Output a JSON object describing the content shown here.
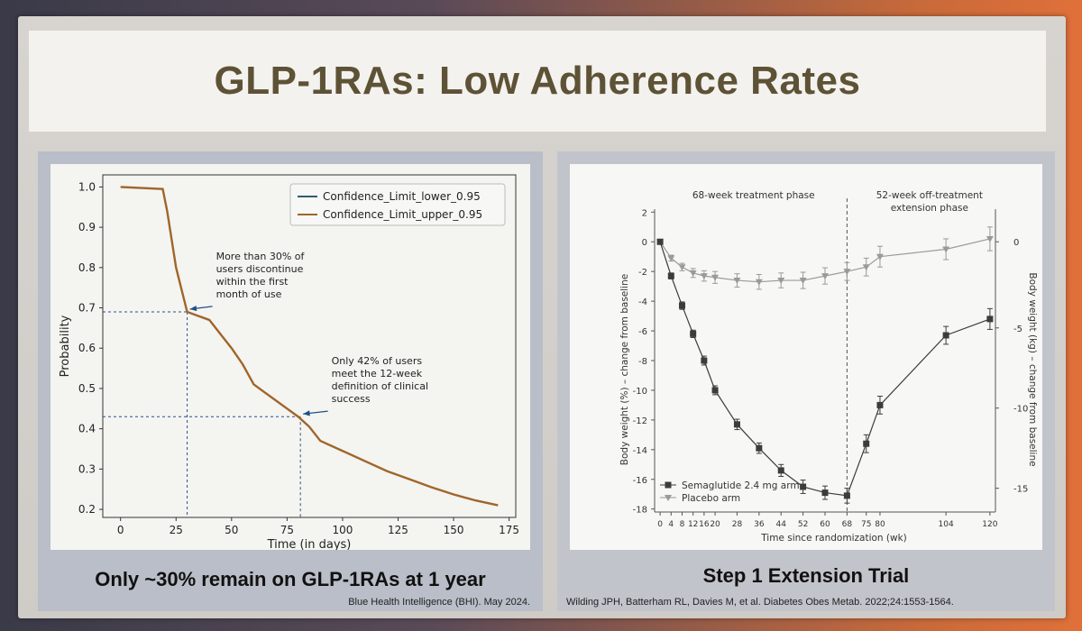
{
  "slide": {
    "title": "GLP-1RAs: Low Adherence Rates"
  },
  "left_panel": {
    "caption": "Only ~30% remain on GLP-1RAs at 1 year",
    "source": "Blue Health Intelligence (BHI). May 2024."
  },
  "right_panel": {
    "caption": "Step 1 Extension Trial",
    "source": "Wilding JPH, Batterham RL, Davies M, et al.  Diabetes Obes Metab.  2022;24:1553-1564."
  },
  "colors": {
    "title": "#5e5236",
    "curve": "#a0652a",
    "lower_line": "#2f5d6e",
    "sema": "#3c3c3c",
    "placebo": "#9a9a9a"
  },
  "chart_data": [
    {
      "type": "line",
      "title": "",
      "xlabel": "Time (in days)",
      "ylabel": "Probability",
      "xlim": [
        -8,
        178
      ],
      "ylim": [
        0.18,
        1.03
      ],
      "xticks": [
        0,
        25,
        50,
        75,
        100,
        125,
        150,
        175
      ],
      "xtick_labels": [
        "0",
        "25",
        "50",
        "75",
        "100",
        "125",
        "150",
        "175"
      ],
      "yticks": [
        0.2,
        0.3,
        0.4,
        0.5,
        0.6,
        0.7,
        0.8,
        0.9,
        1.0
      ],
      "ytick_labels": [
        "0.2",
        "0.3",
        "0.4",
        "0.5",
        "0.6",
        "0.7",
        "0.8",
        "0.9",
        "1.0"
      ],
      "legend": {
        "position": "top-right",
        "entries": [
          "Confidence_Limit_lower_0.95",
          "Confidence_Limit_upper_0.95"
        ]
      },
      "series": [
        {
          "name": "Confidence_Limit_upper_0.95",
          "x": [
            0,
            19,
            21,
            25,
            30,
            35,
            40,
            45,
            50,
            55,
            60,
            65,
            70,
            75,
            80,
            85,
            90,
            100,
            110,
            120,
            130,
            140,
            150,
            160,
            170
          ],
          "y": [
            1.0,
            0.995,
            0.94,
            0.8,
            0.69,
            0.68,
            0.67,
            0.635,
            0.6,
            0.56,
            0.51,
            0.49,
            0.47,
            0.45,
            0.43,
            0.405,
            0.37,
            0.345,
            0.32,
            0.295,
            0.275,
            0.255,
            0.237,
            0.222,
            0.21
          ]
        }
      ],
      "reference_lines": [
        {
          "x": 30,
          "y": 0.69
        },
        {
          "x": 81,
          "y": 0.43
        }
      ],
      "annotations": [
        {
          "text": [
            "More than 30% of",
            "users discontinue",
            "within the first",
            "month of use"
          ],
          "arrow_to": [
            30,
            0.69
          ],
          "text_at": [
            43,
            0.82
          ]
        },
        {
          "text": [
            "Only 42% of users",
            "meet the 12-week",
            "definition of clinical",
            "success"
          ],
          "arrow_to": [
            81,
            0.43
          ],
          "text_at": [
            95,
            0.56
          ]
        }
      ]
    },
    {
      "type": "line",
      "title": "",
      "xlabel": "Time since randomization (wk)",
      "ylabel": "Body weight (%) – change from baseline",
      "ylabel_right": "Body weight (kg) – change from baseline",
      "xlim": [
        -2,
        122
      ],
      "ylim": [
        -18.2,
        2.2
      ],
      "xticks": [
        0,
        4,
        8,
        12,
        16,
        20,
        28,
        36,
        44,
        52,
        60,
        68,
        75,
        80,
        104,
        120
      ],
      "xtick_labels": [
        "0",
        "4",
        "8",
        "12",
        "16",
        "20",
        "28",
        "36",
        "44",
        "52",
        "60",
        "68",
        "75",
        "80",
        "104",
        "120"
      ],
      "yticks": [
        2,
        0,
        -2,
        -4,
        -6,
        -8,
        -10,
        -12,
        -14,
        -16,
        -18
      ],
      "ytick_labels": [
        "2",
        "0",
        "-2",
        "-4",
        "-6",
        "-8",
        "-10",
        "-12",
        "-14",
        "-16",
        "-18"
      ],
      "yticks_right": [
        0,
        -5,
        -10,
        -15
      ],
      "ytick_right_labels": [
        "0",
        "-5",
        "-10",
        "-15"
      ],
      "yticks_right_pos": [
        0,
        -5.8,
        -11.2,
        -16.6
      ],
      "phase_divider_x": 68,
      "phase_labels": [
        {
          "text": [
            "68-week treatment phase"
          ],
          "x": 34
        },
        {
          "text": [
            "52-week off-treatment",
            "extension phase"
          ],
          "x": 98
        }
      ],
      "legend": {
        "position": "bottom-left",
        "entries": [
          "Semaglutide 2.4 mg arm",
          "Placebo arm"
        ]
      },
      "series": [
        {
          "name": "Semaglutide 2.4 mg arm",
          "marker": "square",
          "x": [
            0,
            4,
            8,
            12,
            16,
            20,
            28,
            36,
            44,
            52,
            60,
            68,
            75,
            80,
            104,
            120
          ],
          "y": [
            0,
            -2.3,
            -4.3,
            -6.2,
            -8.0,
            -10.0,
            -12.3,
            -13.9,
            -15.4,
            -16.5,
            -16.9,
            -17.1,
            -13.6,
            -11.0,
            -6.3,
            -5.2
          ],
          "err": [
            0.15,
            0.2,
            0.25,
            0.25,
            0.3,
            0.3,
            0.35,
            0.35,
            0.4,
            0.45,
            0.45,
            0.5,
            0.6,
            0.6,
            0.6,
            0.7
          ]
        },
        {
          "name": "Placebo arm",
          "marker": "triangle-down",
          "x": [
            0,
            4,
            8,
            12,
            16,
            20,
            28,
            36,
            44,
            52,
            60,
            68,
            75,
            80,
            104,
            120
          ],
          "y": [
            0,
            -1.1,
            -1.7,
            -2.1,
            -2.3,
            -2.4,
            -2.6,
            -2.7,
            -2.6,
            -2.6,
            -2.3,
            -2.0,
            -1.7,
            -1.0,
            -0.5,
            0.2
          ],
          "err": [
            0.1,
            0.2,
            0.25,
            0.3,
            0.35,
            0.4,
            0.45,
            0.5,
            0.5,
            0.55,
            0.55,
            0.6,
            0.6,
            0.7,
            0.7,
            0.8
          ]
        }
      ]
    }
  ]
}
